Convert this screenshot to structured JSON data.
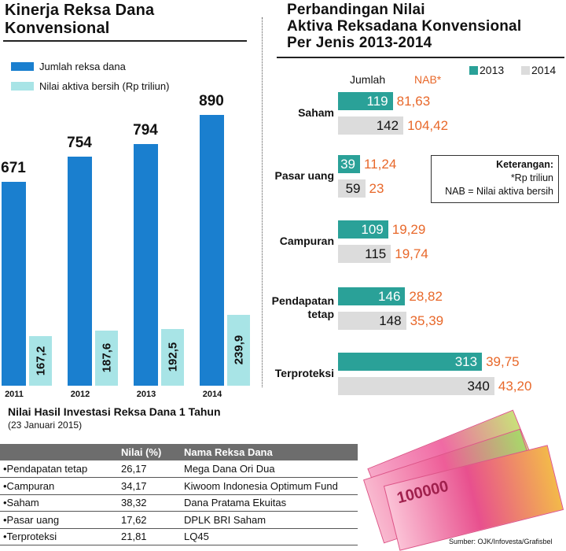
{
  "left_chart": {
    "title_line1": "Kinerja Reksa Dana",
    "title_line2": "Konvensional",
    "legend": [
      {
        "label": "Jumlah reksa dana",
        "color": "#1a7fcf"
      },
      {
        "label": "Nilai aktiva bersih (Rp triliun)",
        "color": "#a8e4e6"
      }
    ]
  },
  "chart_data": [
    {
      "type": "bar",
      "title": "Kinerja Reksa Dana Konvensional",
      "categories": [
        "2011",
        "2012",
        "2013",
        "2014"
      ],
      "series": [
        {
          "name": "Jumlah reksa dana",
          "values": [
            671,
            754,
            794,
            890
          ],
          "labels": [
            "671",
            "754",
            "794",
            "890"
          ],
          "color": "#1a7fcf"
        },
        {
          "name": "Nilai aktiva bersih (Rp triliun)",
          "values": [
            167.2,
            187.6,
            192.5,
            239.9
          ],
          "labels": [
            "167,2",
            "187,6",
            "192,5",
            "239,9"
          ],
          "color": "#a8e4e6"
        }
      ]
    },
    {
      "type": "bar",
      "orientation": "horizontal",
      "title": "Perbandingan Nilai Aktiva Reksadana Konvensional Per Jenis 2013-2014",
      "categories": [
        "Saham",
        "Pasar uang",
        "Campuran",
        "Pendapatan tetap",
        "Terproteksi"
      ],
      "series": [
        {
          "name": "2013",
          "color": "#2aa198",
          "jumlah": [
            119,
            39,
            109,
            146,
            313
          ],
          "nab": [
            "81,63",
            "11,24",
            "19,29",
            "28,82",
            "39,75"
          ]
        },
        {
          "name": "2014",
          "color": "#dcdcdc",
          "jumlah": [
            142,
            59,
            115,
            148,
            340
          ],
          "nab": [
            "104,42",
            "23",
            "19,74",
            "35,39",
            "43,20"
          ]
        }
      ],
      "column_headers": {
        "jumlah": "Jumlah",
        "nab": "NAB*"
      }
    }
  ],
  "right_chart": {
    "title_lines": [
      "Perbandingan Nilai",
      "Aktiva Reksadana Konvensional",
      "Per Jenis 2013-2014"
    ],
    "legend": [
      "2013",
      "2014"
    ],
    "col_jumlah": "Jumlah",
    "col_nab": "NAB*",
    "cat_lines": [
      [
        "Saham"
      ],
      [
        "Pasar uang"
      ],
      [
        "Campuran"
      ],
      [
        "Pendapatan",
        "tetap"
      ],
      [
        "Terproteksi"
      ]
    ],
    "note": [
      "Keterangan:",
      "*Rp triliun",
      "NAB = Nilai aktiva bersih"
    ]
  },
  "table": {
    "title": "Nilai Hasil Investasi Reksa Dana 1 Tahun",
    "subtitle": "(23 Januari 2015)",
    "headers": [
      "",
      "Nilai (%)",
      "Nama Reksa Dana"
    ],
    "rows": [
      [
        "Pendapatan tetap",
        "26,17",
        "Mega Dana Ori Dua"
      ],
      [
        "Campuran",
        "34,17",
        "Kiwoom Indonesia Optimum Fund"
      ],
      [
        "Saham",
        "38,32",
        "Dana Pratama Ekuitas"
      ],
      [
        "Pasar uang",
        "17,62",
        "DPLK BRI Saham"
      ],
      [
        "Terproteksi",
        "21,81",
        "LQ45"
      ]
    ]
  },
  "money_text": "100000",
  "source": "Sumber: OJK/Infovesta/Grafisbel"
}
